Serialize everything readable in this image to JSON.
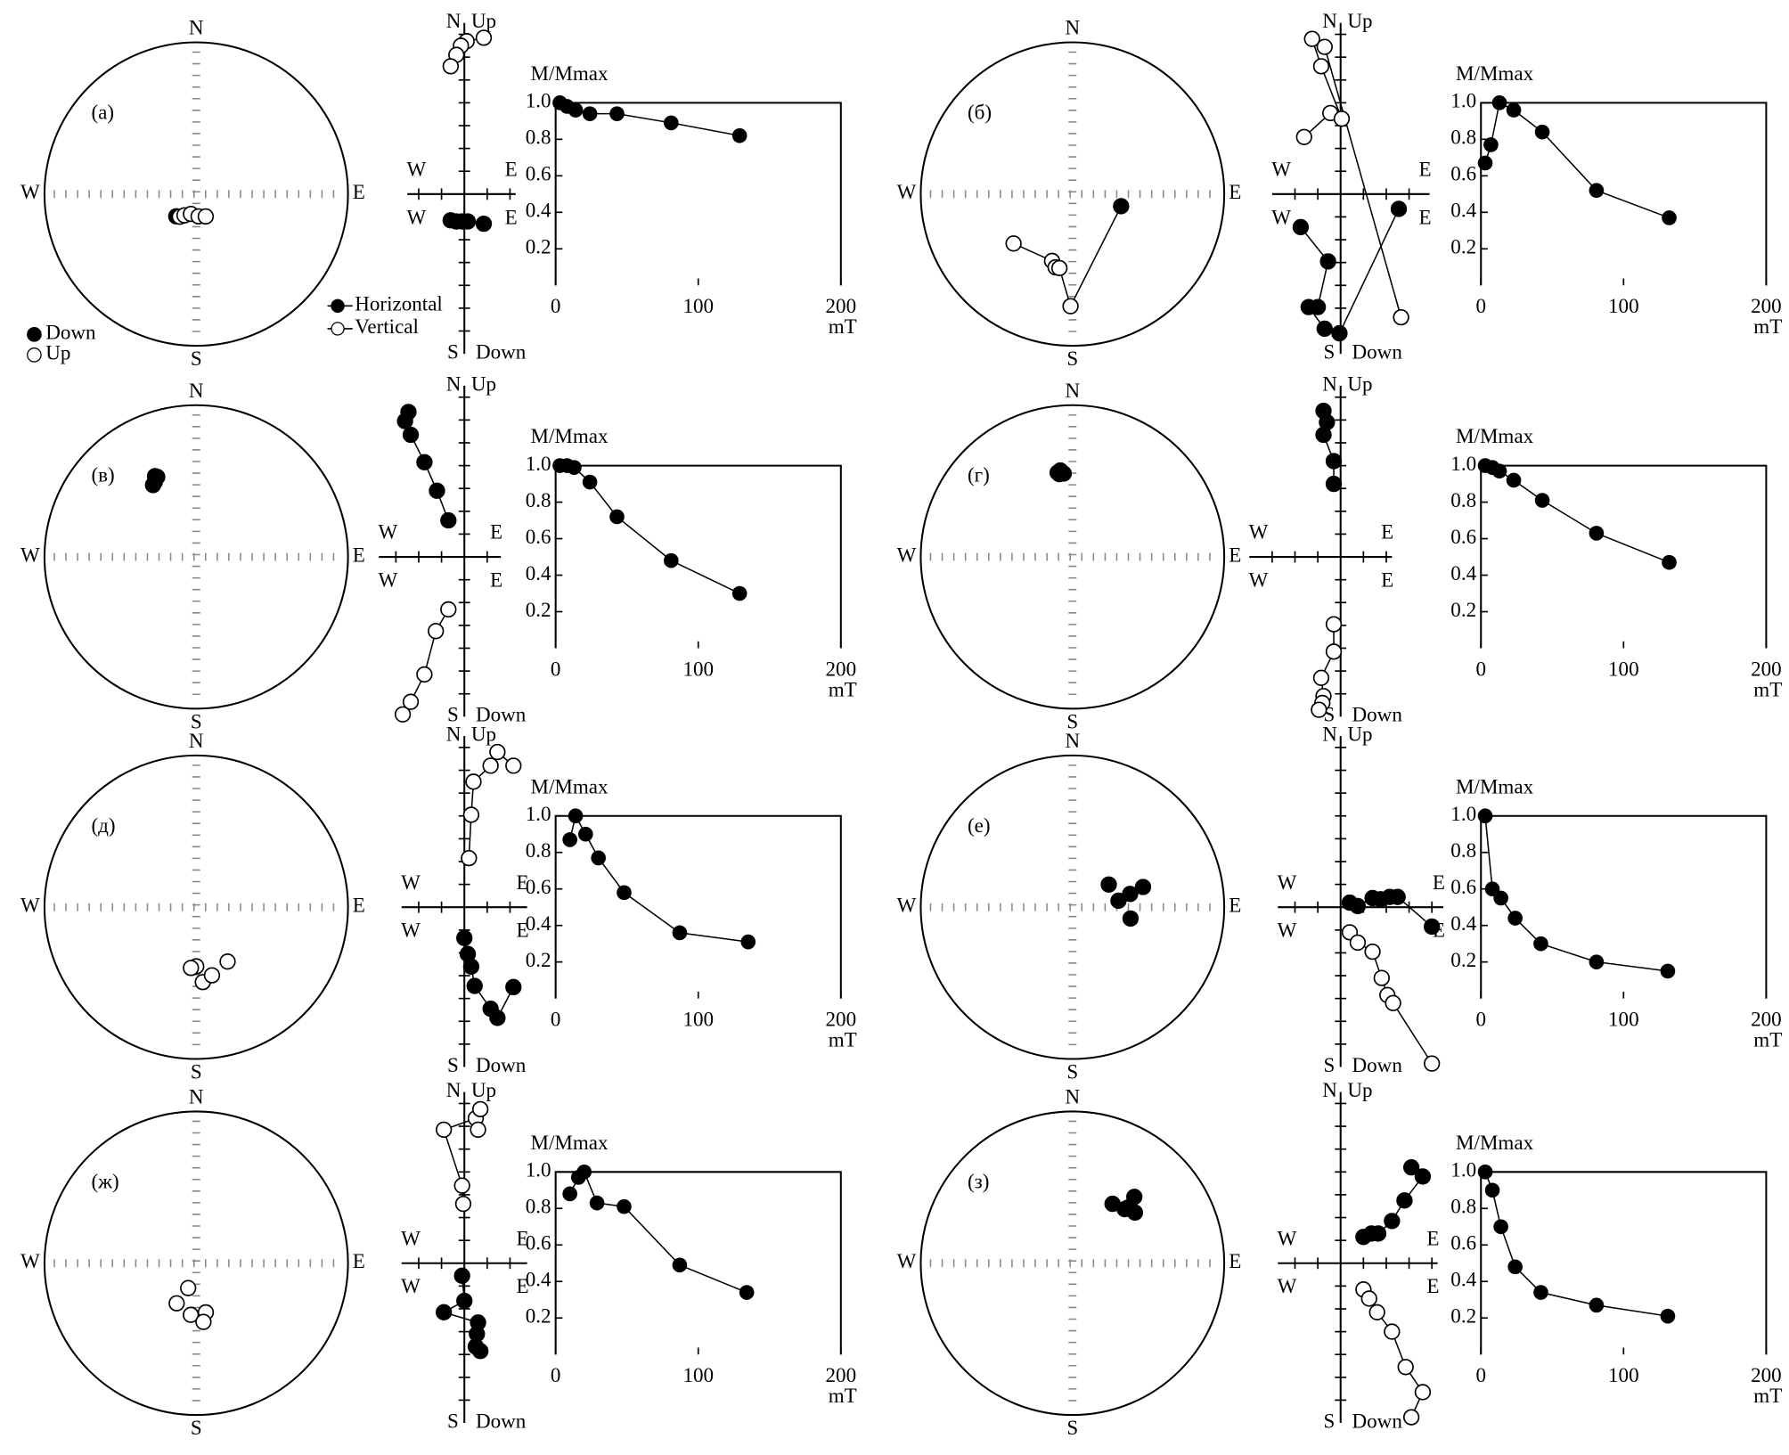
{
  "chart_data": [
    {
      "type": "stereonet",
      "label": "(а)",
      "north": "N",
      "south": "S",
      "west": "W",
      "east": "E",
      "points": {
        "dec": [
          222,
          216,
          209,
          195,
          174,
          157
        ],
        "inc": [
          74,
          -75,
          -77,
          -79,
          -78,
          -77
        ]
      },
      "legend": {
        "down": "Down",
        "up": "Up"
      }
    },
    {
      "type": "zijderveld",
      "north": "N",
      "up": "Up",
      "south": "S",
      "down": "Down",
      "west": "W",
      "east": "E",
      "xlim": [
        -5,
        4.5
      ],
      "ylim": [
        -14,
        15
      ],
      "xticks": [
        -4,
        -2,
        2,
        4
      ],
      "yticks": [
        -12,
        -10,
        -8,
        -6,
        -4,
        -2,
        2,
        4,
        6,
        8,
        10,
        12,
        14
      ],
      "series": [
        {
          "name": "Horizontal",
          "fill": "#000000",
          "x": [
            1.7,
            0.3,
            -0.2,
            -0.7,
            -1.2
          ],
          "y": [
            -2.6,
            -2.4,
            -2.4,
            -2.4,
            -2.3
          ]
        },
        {
          "name": "Vertical",
          "fill": "#ffffff",
          "x": [
            1.7,
            0.2,
            -0.3,
            -0.7,
            -1.2
          ],
          "y": [
            13.7,
            13.4,
            13.0,
            12.2,
            11.2
          ]
        }
      ]
    },
    {
      "type": "line",
      "title": "M/Mmax",
      "xlabel": "mT",
      "xlim": [
        0,
        200
      ],
      "ylim": [
        0,
        1
      ],
      "xticks": [
        0,
        100,
        200
      ],
      "yticks": [
        0.2,
        0.4,
        0.6,
        0.8,
        {
          "value": 1,
          "label": "1.0"
        }
      ],
      "x": [
        3,
        8,
        14,
        24,
        43,
        81,
        129
      ],
      "values": [
        1.0,
        0.98,
        0.96,
        0.94,
        0.94,
        0.89,
        0.82
      ]
    },
    {
      "type": "stereonet",
      "label": "(б)",
      "north": "N",
      "south": "S",
      "west": "W",
      "east": "E",
      "connect": true,
      "points": {
        "dec": [
          230,
          197,
          193,
          190,
          181,
          104
        ],
        "inc": [
          -48,
          -52,
          -49,
          -49,
          -27,
          63
        ]
      }
    },
    {
      "type": "zijderveld",
      "north": "N",
      "up": "Up",
      "south": "S",
      "down": "Down",
      "west": "W",
      "east": "E",
      "xlim": [
        -6,
        7.8
      ],
      "ylim": [
        -14,
        15
      ],
      "xticks": [
        -4,
        -2,
        2,
        4,
        6
      ],
      "yticks": [
        -12,
        -10,
        -8,
        -6,
        -4,
        -2,
        2,
        4,
        6,
        8,
        10,
        12,
        14
      ],
      "series": [
        {
          "fill": "#000000",
          "x": [
            -3.5,
            -1.1,
            -2.0,
            -2.8,
            -1.4,
            -0.1,
            5.1
          ],
          "y": [
            -2.9,
            -5.9,
            -9.9,
            -9.9,
            -11.8,
            -12.2,
            -1.3
          ]
        },
        {
          "fill": "#ffffff",
          "x": [
            -3.2,
            -0.9,
            0.1,
            -1.7,
            -2.5,
            -1.4,
            5.3
          ],
          "y": [
            5.0,
            7.1,
            6.6,
            11.2,
            13.6,
            12.9,
            -10.8
          ]
        }
      ]
    },
    {
      "type": "line",
      "title": "M/Mmax",
      "xlabel": "mT",
      "xlim": [
        0,
        200
      ],
      "ylim": [
        0,
        1
      ],
      "xticks": [
        0,
        100,
        200
      ],
      "yticks": [
        0.2,
        0.4,
        0.6,
        0.8,
        {
          "value": 1,
          "label": "1.0"
        }
      ],
      "x": [
        3,
        7,
        13,
        23,
        43,
        81,
        132
      ],
      "values": [
        0.67,
        0.77,
        1.0,
        0.96,
        0.84,
        0.52,
        0.37
      ]
    },
    {
      "type": "stereonet",
      "label": "(в)",
      "north": "N",
      "south": "S",
      "west": "W",
      "east": "E",
      "points": {
        "dec": [
          334,
          329,
          331,
          333
        ],
        "inc": [
          41,
          44,
          43,
          40
        ]
      }
    },
    {
      "type": "zijderveld",
      "north": "N",
      "up": "Up",
      "south": "S",
      "down": "Down",
      "west": "W",
      "east": "E",
      "xlim": [
        -7.5,
        3.2
      ],
      "ylim": [
        -14,
        15
      ],
      "xticks": [
        -6,
        -4,
        -2,
        2
      ],
      "yticks": [
        -12,
        -10,
        -8,
        -6,
        -4,
        -2,
        2,
        4,
        6,
        8,
        10,
        12,
        14
      ],
      "series": [
        {
          "fill": "#000000",
          "x": [
            -4.9,
            -5.2,
            -4.7,
            -3.5,
            -2.4,
            -1.4
          ],
          "y": [
            12.7,
            11.9,
            10.7,
            8.3,
            5.8,
            3.2
          ]
        },
        {
          "fill": "#ffffff",
          "x": [
            -5.4,
            -4.7,
            -3.5,
            -2.5,
            -1.4
          ],
          "y": [
            -13.8,
            -12.7,
            -10.3,
            -6.5,
            -4.6
          ]
        }
      ]
    },
    {
      "type": "line",
      "title": "M/Mmax",
      "xlabel": "mT",
      "xlim": [
        0,
        200
      ],
      "ylim": [
        0,
        1
      ],
      "xticks": [
        0,
        100,
        200
      ],
      "yticks": [
        0.2,
        0.4,
        0.6,
        0.8,
        {
          "value": 1,
          "label": "1.0"
        }
      ],
      "x": [
        3,
        8,
        13,
        24,
        43,
        81,
        129
      ],
      "values": [
        1.0,
        1.0,
        0.99,
        0.91,
        0.72,
        0.48,
        0.3
      ]
    },
    {
      "type": "stereonet",
      "label": "(г)",
      "north": "N",
      "south": "S",
      "west": "W",
      "east": "E",
      "points": {
        "dec": [
          350,
          352,
          354,
          351
        ],
        "inc": [
          43,
          42,
          44,
          44
        ]
      }
    },
    {
      "type": "zijderveld",
      "north": "N",
      "up": "Up",
      "south": "S",
      "down": "Down",
      "west": "W",
      "east": "E",
      "xlim": [
        -8,
        4.5
      ],
      "ylim": [
        -14,
        15
      ],
      "xticks": [
        -6,
        -4,
        -2,
        2,
        4
      ],
      "yticks": [
        -12,
        -10,
        -8,
        -6,
        -4,
        -2,
        2,
        4,
        6,
        8,
        10,
        12,
        14
      ],
      "series": [
        {
          "fill": "#000000",
          "x": [
            -1.5,
            -1.2,
            -1.5,
            -0.6,
            -0.6
          ],
          "y": [
            12.8,
            11.8,
            10.7,
            8.4,
            6.4
          ]
        },
        {
          "fill": "#ffffff",
          "x": [
            -0.6,
            -0.6,
            -1.7,
            -1.5,
            -1.6,
            -1.9
          ],
          "y": [
            -5.9,
            -8.3,
            -10.6,
            -12.2,
            -12.8,
            -13.4
          ]
        }
      ]
    },
    {
      "type": "line",
      "title": "M/Mmax",
      "xlabel": "mT",
      "xlim": [
        0,
        200
      ],
      "ylim": [
        0,
        1
      ],
      "xticks": [
        0,
        100,
        200
      ],
      "yticks": [
        0.2,
        0.4,
        0.6,
        0.8,
        {
          "value": 1,
          "label": "1.0"
        }
      ],
      "x": [
        3,
        8,
        13,
        23,
        43,
        81,
        132
      ],
      "values": [
        1.0,
        0.99,
        0.97,
        0.92,
        0.81,
        0.63,
        0.47
      ]
    },
    {
      "type": "stereonet",
      "label": "(д)",
      "north": "N",
      "south": "S",
      "west": "W",
      "east": "E",
      "points": {
        "dec": [
          180,
          175,
          167,
          150,
          185
        ],
        "inc": [
          -58,
          -49,
          -52,
          -56,
          -57
        ]
      }
    },
    {
      "type": "zijderveld",
      "north": "N",
      "up": "Up",
      "south": "S",
      "down": "Down",
      "west": "W",
      "east": "E",
      "xlim": [
        -5.5,
        5.5
      ],
      "ylim": [
        -14,
        15
      ],
      "xticks": [
        -4,
        -2,
        2,
        4
      ],
      "yticks": [
        -12,
        -10,
        -8,
        -6,
        -4,
        -2,
        2,
        4,
        6,
        8,
        10,
        12,
        14
      ],
      "series": [
        {
          "fill": "#000000",
          "x": [
            0,
            0.3,
            0.6,
            0.9,
            2.3,
            2.9,
            4.3
          ],
          "y": [
            -2.7,
            -4.1,
            -5.2,
            -6.9,
            -8.9,
            -9.7,
            -7.0
          ]
        },
        {
          "fill": "#ffffff",
          "x": [
            0.4,
            0.6,
            0.8,
            2.3,
            2.9,
            4.3
          ],
          "y": [
            4.3,
            8.1,
            11.0,
            12.4,
            13.6,
            12.4
          ]
        }
      ]
    },
    {
      "type": "line",
      "title": "M/Mmax",
      "xlabel": "mT",
      "xlim": [
        0,
        200
      ],
      "ylim": [
        0,
        1
      ],
      "xticks": [
        0,
        100,
        200
      ],
      "yticks": [
        0.2,
        0.4,
        0.6,
        0.8,
        {
          "value": 1,
          "label": "1.0"
        }
      ],
      "x": [
        10,
        14,
        21,
        30,
        48,
        87,
        135
      ],
      "values": [
        0.87,
        1.0,
        0.9,
        0.77,
        0.58,
        0.36,
        0.31
      ]
    },
    {
      "type": "stereonet",
      "label": "(е)",
      "north": "N",
      "south": "S",
      "west": "W",
      "east": "E",
      "points": {
        "dec": [
          58,
          82,
          77,
          74,
          101
        ],
        "inc": [
          67,
          65,
          58,
          50,
          58
        ]
      }
    },
    {
      "type": "zijderveld",
      "north": "N",
      "up": "Up",
      "south": "S",
      "down": "Down",
      "west": "W",
      "east": "E",
      "xlim": [
        -5.5,
        9
      ],
      "ylim": [
        -14,
        15
      ],
      "xticks": [
        -4,
        -2,
        2,
        4,
        6,
        8
      ],
      "yticks": [
        -12,
        -10,
        -8,
        -6,
        -4,
        -2,
        2,
        4,
        6,
        8,
        10,
        12,
        14
      ],
      "series": [
        {
          "fill": "#000000",
          "x": [
            0.8,
            1.5,
            2.8,
            3.5,
            4.3,
            5.0,
            8.0
          ],
          "y": [
            0.4,
            0.1,
            0.8,
            0.7,
            0.9,
            0.9,
            -1.7
          ]
        },
        {
          "fill": "#ffffff",
          "x": [
            0.8,
            1.5,
            2.8,
            3.6,
            4.1,
            4.6,
            8.0
          ],
          "y": [
            -2.2,
            -3.1,
            -3.9,
            -6.2,
            -7.7,
            -8.4,
            -13.7
          ]
        }
      ]
    },
    {
      "type": "line",
      "title": "M/Mmax",
      "xlabel": "mT",
      "xlim": [
        0,
        200
      ],
      "ylim": [
        0,
        1
      ],
      "xticks": [
        0,
        100,
        200
      ],
      "yticks": [
        0.2,
        0.4,
        0.6,
        0.8,
        {
          "value": 1,
          "label": "1.0"
        }
      ],
      "x": [
        3,
        8,
        14,
        24,
        42,
        81,
        131
      ],
      "values": [
        1.0,
        0.6,
        0.55,
        0.44,
        0.3,
        0.2,
        0.15
      ]
    },
    {
      "type": "stereonet",
      "label": "(ж)",
      "north": "N",
      "south": "S",
      "west": "W",
      "east": "E",
      "points": {
        "dec": [
          198,
          206,
          186,
          169,
          173
        ],
        "inc": [
          -76,
          -66,
          -62,
          -63,
          -58
        ]
      }
    },
    {
      "type": "zijderveld",
      "north": "N",
      "up": "Up",
      "south": "S",
      "down": "Down",
      "west": "W",
      "east": "E",
      "xlim": [
        -5.5,
        5.5
      ],
      "ylim": [
        -14,
        15
      ],
      "xticks": [
        -4,
        -2,
        2,
        4
      ],
      "yticks": [
        -12,
        -10,
        -8,
        -6,
        -4,
        -2,
        2,
        4,
        6,
        8,
        10,
        12,
        14
      ],
      "series": [
        {
          "fill": "#000000",
          "x": [
            -0.2,
            0,
            -1.8,
            1.2,
            1.1,
            1.0,
            1.4
          ],
          "y": [
            -1.1,
            -3.3,
            -4.3,
            -5.2,
            -6.2,
            -7.3,
            -7.7
          ]
        },
        {
          "fill": "#ffffff",
          "x": [
            -0.1,
            -0.2,
            -1.8,
            1.0,
            1.2,
            1.4
          ],
          "y": [
            5.2,
            6.8,
            11.7,
            12.7,
            11.7,
            13.5
          ]
        }
      ]
    },
    {
      "type": "line",
      "title": "M/Mmax",
      "xlabel": "mT",
      "xlim": [
        0,
        200
      ],
      "ylim": [
        0,
        1
      ],
      "xticks": [
        0,
        100,
        200
      ],
      "yticks": [
        0.2,
        0.4,
        0.6,
        0.8,
        {
          "value": 1,
          "label": "1.0"
        }
      ],
      "x": [
        10,
        16,
        20,
        29,
        48,
        87,
        134
      ],
      "values": [
        0.88,
        0.97,
        1.0,
        0.83,
        0.81,
        0.49,
        0.34
      ]
    },
    {
      "type": "stereonet",
      "label": "(з)",
      "north": "N",
      "south": "S",
      "west": "W",
      "east": "E",
      "points": {
        "dec": [
          34,
          44,
          43,
          51,
          45
        ],
        "inc": [
          51,
          49,
          40,
          46,
          47
        ]
      }
    },
    {
      "type": "zijderveld",
      "north": "N",
      "up": "Up",
      "south": "S",
      "down": "Down",
      "west": "W",
      "east": "E",
      "xlim": [
        -5.5,
        8.5
      ],
      "ylim": [
        -14,
        15
      ],
      "xticks": [
        -4,
        -2,
        2,
        4,
        6,
        8
      ],
      "yticks": [
        -12,
        -10,
        -8,
        -6,
        -4,
        -2,
        2,
        4,
        6,
        8,
        10,
        12,
        14
      ],
      "series": [
        {
          "fill": "#000000",
          "x": [
            2.0,
            2.7,
            3.3,
            4.5,
            5.6,
            7.2,
            6.2
          ],
          "y": [
            2.3,
            2.6,
            2.6,
            3.7,
            5.5,
            7.6,
            8.4
          ]
        },
        {
          "fill": "#ffffff",
          "x": [
            2.0,
            2.5,
            3.2,
            4.5,
            5.7,
            7.2,
            6.2
          ],
          "y": [
            -2.3,
            -3.1,
            -4.3,
            -6.0,
            -9.1,
            -11.3,
            -13.5
          ]
        }
      ]
    },
    {
      "type": "line",
      "title": "M/Mmax",
      "xlabel": "mT",
      "xlim": [
        0,
        200
      ],
      "ylim": [
        0,
        1
      ],
      "xticks": [
        0,
        100,
        200
      ],
      "yticks": [
        0.2,
        0.4,
        0.6,
        0.8,
        {
          "value": 1,
          "label": "1.0"
        }
      ],
      "x": [
        3,
        8,
        14,
        24,
        42,
        81,
        131
      ],
      "values": [
        1.0,
        0.9,
        0.7,
        0.48,
        0.34,
        0.27,
        0.21
      ]
    }
  ]
}
